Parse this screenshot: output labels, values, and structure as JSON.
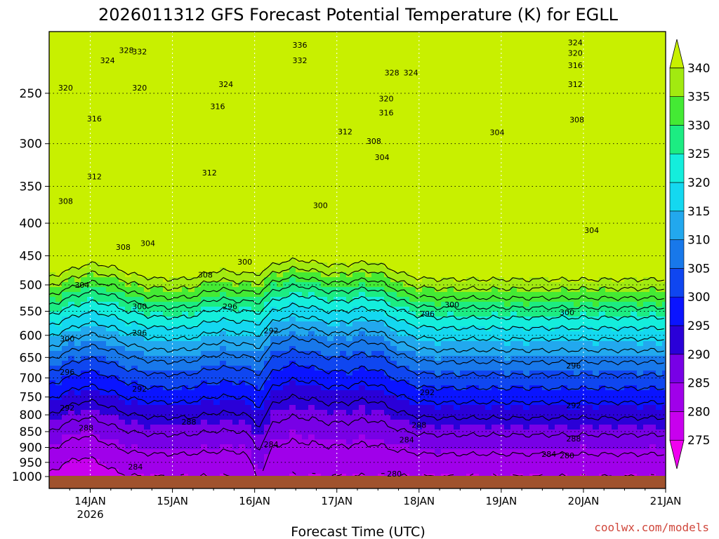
{
  "chart_data": {
    "type": "heatmap",
    "title": "2026011312 GFS Forecast Potential Temperature (K) for EGLL",
    "xlabel": "Forecast Time (UTC)",
    "ylabel": "",
    "x_ticks": [
      {
        "label": "14JAN",
        "sub": "2026",
        "day": 1
      },
      {
        "label": "15JAN",
        "sub": "",
        "day": 2
      },
      {
        "label": "16JAN",
        "sub": "",
        "day": 3
      },
      {
        "label": "17JAN",
        "sub": "",
        "day": 4
      },
      {
        "label": "18JAN",
        "sub": "",
        "day": 5
      },
      {
        "label": "19JAN",
        "sub": "",
        "day": 6
      },
      {
        "label": "20JAN",
        "sub": "",
        "day": 7
      },
      {
        "label": "21JAN",
        "sub": "",
        "day": 8
      }
    ],
    "xlim_days": [
      0.5,
      8.0
    ],
    "y_ticks": [
      250,
      300,
      350,
      400,
      450,
      500,
      550,
      600,
      650,
      700,
      750,
      800,
      850,
      900,
      950,
      1000
    ],
    "ylim_hpa": [
      200,
      1000
    ],
    "y_scale": "log",
    "grid": true,
    "colorbar": {
      "levels": [
        275,
        280,
        285,
        290,
        295,
        300,
        305,
        310,
        315,
        320,
        325,
        330,
        335,
        340
      ],
      "colors": [
        "#f000f0",
        "#c800ee",
        "#a000ea",
        "#7800e6",
        "#2a00d8",
        "#0a14ff",
        "#0f46f0",
        "#1878ea",
        "#22a8ee",
        "#14d8f0",
        "#14eedc",
        "#1cec82",
        "#44ea34",
        "#a2ea10",
        "#c8f000"
      ],
      "placement": "right"
    },
    "ground_color": "#a0522d",
    "contour_labels": [
      {
        "text": "328",
        "day": 1.44,
        "p": 214
      },
      {
        "text": "324",
        "day": 1.21,
        "p": 222
      },
      {
        "text": "332",
        "day": 1.6,
        "p": 215
      },
      {
        "text": "336",
        "day": 3.55,
        "p": 210
      },
      {
        "text": "332",
        "day": 3.55,
        "p": 222
      },
      {
        "text": "328",
        "day": 4.67,
        "p": 232
      },
      {
        "text": "324",
        "day": 4.9,
        "p": 232
      },
      {
        "text": "324",
        "day": 6.9,
        "p": 208
      },
      {
        "text": "320",
        "day": 6.9,
        "p": 216
      },
      {
        "text": "316",
        "day": 6.9,
        "p": 226
      },
      {
        "text": "312",
        "day": 6.9,
        "p": 242
      },
      {
        "text": "320",
        "day": 0.7,
        "p": 245
      },
      {
        "text": "320",
        "day": 1.6,
        "p": 245
      },
      {
        "text": "324",
        "day": 2.65,
        "p": 242
      },
      {
        "text": "316",
        "day": 2.55,
        "p": 262
      },
      {
        "text": "320",
        "day": 4.6,
        "p": 255
      },
      {
        "text": "316",
        "day": 4.6,
        "p": 268
      },
      {
        "text": "316",
        "day": 1.05,
        "p": 274
      },
      {
        "text": "308",
        "day": 6.92,
        "p": 275
      },
      {
        "text": "312",
        "day": 4.1,
        "p": 287
      },
      {
        "text": "308",
        "day": 4.45,
        "p": 297
      },
      {
        "text": "304",
        "day": 5.95,
        "p": 288
      },
      {
        "text": "304",
        "day": 4.55,
        "p": 315
      },
      {
        "text": "312",
        "day": 2.45,
        "p": 333
      },
      {
        "text": "312",
        "day": 1.05,
        "p": 338
      },
      {
        "text": "308",
        "day": 0.7,
        "p": 369
      },
      {
        "text": "300",
        "day": 3.8,
        "p": 375
      },
      {
        "text": "304",
        "day": 7.1,
        "p": 410
      },
      {
        "text": "304",
        "day": 1.7,
        "p": 430
      },
      {
        "text": "308",
        "day": 1.4,
        "p": 436
      },
      {
        "text": "300",
        "day": 2.88,
        "p": 460
      },
      {
        "text": "308",
        "day": 2.4,
        "p": 482
      },
      {
        "text": "304",
        "day": 0.9,
        "p": 500
      },
      {
        "text": "300",
        "day": 1.6,
        "p": 540
      },
      {
        "text": "300",
        "day": 5.4,
        "p": 537
      },
      {
        "text": "300",
        "day": 6.8,
        "p": 552
      },
      {
        "text": "296",
        "day": 2.7,
        "p": 540
      },
      {
        "text": "296",
        "day": 5.1,
        "p": 555
      },
      {
        "text": "296",
        "day": 1.6,
        "p": 594
      },
      {
        "text": "292",
        "day": 3.2,
        "p": 590
      },
      {
        "text": "300",
        "day": 0.72,
        "p": 607
      },
      {
        "text": "296",
        "day": 6.88,
        "p": 670
      },
      {
        "text": "296",
        "day": 0.72,
        "p": 685
      },
      {
        "text": "292",
        "day": 1.6,
        "p": 728
      },
      {
        "text": "292",
        "day": 5.1,
        "p": 737
      },
      {
        "text": "292",
        "day": 6.88,
        "p": 773
      },
      {
        "text": "292",
        "day": 0.72,
        "p": 780
      },
      {
        "text": "288",
        "day": 2.2,
        "p": 820
      },
      {
        "text": "288",
        "day": 5.0,
        "p": 830
      },
      {
        "text": "288",
        "day": 0.95,
        "p": 838
      },
      {
        "text": "288",
        "day": 6.88,
        "p": 872
      },
      {
        "text": "284",
        "day": 4.85,
        "p": 875
      },
      {
        "text": "284",
        "day": 3.2,
        "p": 890
      },
      {
        "text": "284",
        "day": 6.58,
        "p": 922
      },
      {
        "text": "280",
        "day": 6.8,
        "p": 927
      },
      {
        "text": "284",
        "day": 1.55,
        "p": 965
      },
      {
        "text": "280",
        "day": 4.7,
        "p": 990
      }
    ],
    "credit": "coolwx.com/models"
  }
}
